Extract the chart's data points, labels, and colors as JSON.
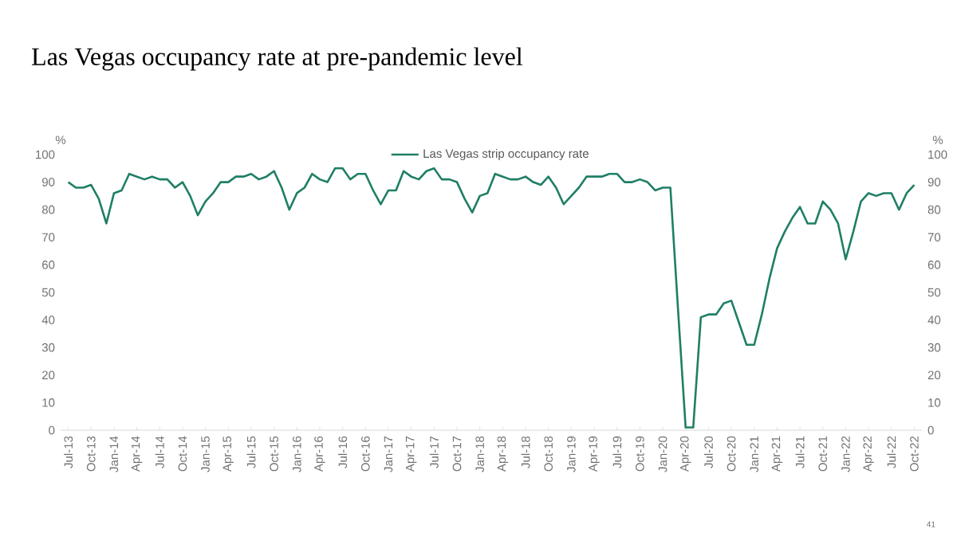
{
  "chart_data": {
    "type": "line",
    "title": "Las Vegas occupancy rate at pre-pandemic level",
    "categories": [
      "Jul-13",
      null,
      null,
      "Oct-13",
      null,
      null,
      "Jan-14",
      null,
      null,
      "Apr-14",
      null,
      null,
      "Jul-14",
      null,
      null,
      "Oct-14",
      null,
      null,
      "Jan-15",
      null,
      null,
      "Apr-15",
      null,
      null,
      "Jul-15",
      null,
      null,
      "Oct-15",
      null,
      null,
      "Jan-16",
      null,
      null,
      "Apr-16",
      null,
      null,
      "Jul-16",
      null,
      null,
      "Oct-16",
      null,
      null,
      "Jan-17",
      null,
      null,
      "Apr-17",
      null,
      null,
      "Jul-17",
      null,
      null,
      "Oct-17",
      null,
      null,
      "Jan-18",
      null,
      null,
      "Apr-18",
      null,
      null,
      "Jul-18",
      null,
      null,
      "Oct-18",
      null,
      null,
      "Jan-19",
      null,
      null,
      "Apr-19",
      null,
      null,
      "Jul-19",
      null,
      null,
      "Oct-19",
      null,
      null,
      "Jan-20",
      null,
      null,
      "Apr-20",
      null,
      null,
      "Jul-20",
      null,
      null,
      "Oct-20",
      null,
      null,
      "Jan-21",
      null,
      null,
      "Apr-21",
      null,
      null,
      "Jul-21",
      null,
      null,
      "Oct-21",
      null,
      null,
      "Jan-22",
      null,
      null,
      "Apr-22",
      null,
      null,
      "Jul-22",
      null,
      null,
      "Oct-22"
    ],
    "series": [
      {
        "name": "Las Vegas strip occupancy rate",
        "color": "#1f7f66",
        "values": [
          90,
          88,
          88,
          89,
          84,
          75,
          86,
          87,
          93,
          92,
          91,
          92,
          91,
          91,
          88,
          90,
          85,
          78,
          83,
          86,
          90,
          90,
          92,
          92,
          93,
          91,
          92,
          94,
          88,
          80,
          86,
          88,
          93,
          91,
          90,
          95,
          95,
          91,
          93,
          93,
          87,
          82,
          87,
          87,
          94,
          92,
          91,
          94,
          95,
          91,
          91,
          90,
          84,
          79,
          85,
          86,
          93,
          92,
          91,
          91,
          92,
          90,
          89,
          92,
          88,
          82,
          85,
          88,
          92,
          92,
          92,
          93,
          93,
          90,
          90,
          91,
          90,
          87,
          88,
          88,
          44,
          1,
          1,
          41,
          42,
          42,
          46,
          47,
          39,
          31,
          31,
          42,
          55,
          66,
          72,
          77,
          81,
          75,
          75,
          83,
          80,
          75,
          62,
          72,
          83,
          86,
          85,
          86,
          86,
          80,
          86,
          89
        ]
      }
    ],
    "ylabel": "%",
    "y2label": "%",
    "ylim": [
      0,
      100
    ],
    "yticks": [
      0,
      10,
      20,
      30,
      40,
      50,
      60,
      70,
      80,
      90,
      100
    ],
    "y2lim": [
      0,
      100
    ],
    "y2ticks": [
      0,
      10,
      20,
      30,
      40,
      50,
      60,
      70,
      80,
      90,
      100
    ],
    "legend": "top",
    "annotations": [
      "41"
    ]
  }
}
